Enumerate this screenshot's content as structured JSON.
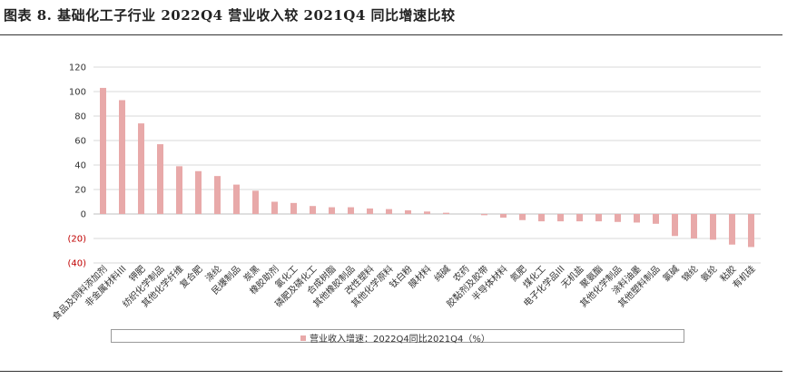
{
  "title": "图表 8. 基础化工子行业 2022Q4 营业收入较 2021Q4 同比增速比较",
  "colors": {
    "bar": "#e8a9a9",
    "grid": "#d9d9d9",
    "negative_tick": "#c00000"
  },
  "chart_data": {
    "type": "bar",
    "title": "图表 8. 基础化工子行业 2022Q4 营业收入较 2021Q4 同比增速比较",
    "xlabel": "",
    "ylabel": "",
    "ylim": [
      -40,
      120
    ],
    "yticks": [
      120,
      100,
      80,
      60,
      40,
      20,
      0,
      -20,
      -40
    ],
    "ytick_labels": [
      "120",
      "100",
      "80",
      "60",
      "40",
      "20",
      "0",
      "(20)",
      "(40)"
    ],
    "grid": true,
    "legend_position": "bottom",
    "categories": [
      "食品及饲料添加剂",
      "非金属材料III",
      "钾肥",
      "纺织化学制品",
      "其他化学纤维",
      "复合肥",
      "涤纶",
      "民爆制品",
      "炭黑",
      "橡胶助剂",
      "氯化工",
      "磷肥及磷化工",
      "合成树脂",
      "其他橡胶制品",
      "改性塑料",
      "其他化学原料",
      "钛白粉",
      "膜材料",
      "纯碱",
      "农药",
      "胶黏剂及胶带",
      "半导体材料",
      "氮肥",
      "煤化工",
      "电子化学品III",
      "无机盐",
      "聚氨酯",
      "其他化学制品",
      "涂料油墨",
      "其他塑料制品",
      "氯碱",
      "锦纶",
      "氨纶",
      "粘胶",
      "有机硅"
    ],
    "series": [
      {
        "name": "营业收入增速：2022Q4同比2021Q4（%）",
        "values": [
          103,
          93,
          74,
          57,
          39,
          35,
          31,
          24,
          19,
          10,
          9,
          6.5,
          5.5,
          5.5,
          4.5,
          4,
          3,
          2,
          1,
          0,
          -1,
          -3,
          -5,
          -6,
          -6,
          -6,
          -6,
          -6.5,
          -7,
          -8,
          -18,
          -20,
          -21,
          -25,
          -27
        ]
      }
    ]
  },
  "legend": {
    "label": "营业收入增速：2022Q4同比2021Q4（%）"
  }
}
